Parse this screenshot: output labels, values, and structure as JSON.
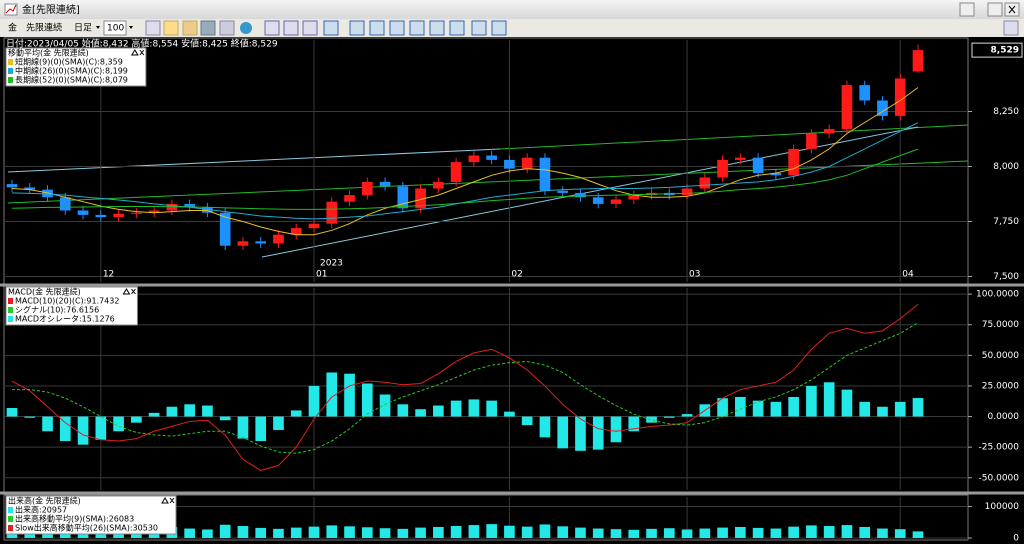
{
  "window": {
    "title": "金[先限連続]"
  },
  "toolbar": {
    "symbol": "金",
    "contract": "先限連続",
    "period": "日足",
    "count": "100"
  },
  "chart_data": [
    {
      "type": "candlestick",
      "header": "日付:2023/04/05 始値:8,432 高値:8,554 安値:8,425 終値:8,529",
      "legend_title": "移動平均(金 先限連続)",
      "categories": [
        null,
        null,
        null,
        null,
        null,
        "12",
        null,
        null,
        null,
        null,
        null,
        null,
        null,
        null,
        null,
        null,
        null,
        "01",
        null,
        null,
        null,
        null,
        null,
        null,
        null,
        null,
        null,
        null,
        "02",
        null,
        null,
        null,
        null,
        null,
        null,
        null,
        null,
        null,
        "03",
        null,
        null,
        null,
        null,
        null,
        null,
        null,
        null,
        null,
        null,
        null,
        "04",
        null
      ],
      "year_label": "2023",
      "open": [
        7920,
        7905,
        7895,
        7860,
        7800,
        7780,
        7770,
        7785,
        7790,
        7800,
        7830,
        7815,
        7790,
        7640,
        7660,
        7650,
        7690,
        7720,
        7740,
        7840,
        7870,
        7930,
        7910,
        7810,
        7900,
        7930,
        8020,
        8050,
        8030,
        7990,
        8040,
        7890,
        7880,
        7860,
        7830,
        7850,
        7870,
        7880,
        7870,
        7900,
        7950,
        8030,
        8040,
        7970,
        7960,
        8080,
        8150,
        8170,
        8370,
        8300,
        8230,
        8432
      ],
      "high": [
        7940,
        7925,
        7915,
        7880,
        7820,
        7800,
        7805,
        7810,
        7820,
        7850,
        7850,
        7835,
        7810,
        7680,
        7680,
        7710,
        7740,
        7760,
        7860,
        7890,
        7950,
        7950,
        7930,
        7920,
        7950,
        8040,
        8070,
        8070,
        8050,
        8060,
        8060,
        7910,
        7900,
        7880,
        7870,
        7890,
        7900,
        7900,
        7920,
        7970,
        8050,
        8060,
        8060,
        7990,
        8100,
        8170,
        8190,
        8390,
        8390,
        8320,
        8420,
        8554
      ],
      "low": [
        7885,
        7875,
        7840,
        7780,
        7760,
        7750,
        7750,
        7765,
        7770,
        7780,
        7795,
        7770,
        7620,
        7620,
        7630,
        7630,
        7670,
        7700,
        7720,
        7820,
        7850,
        7890,
        7790,
        7790,
        7880,
        7910,
        8000,
        8010,
        7970,
        7970,
        7870,
        7860,
        7840,
        7810,
        7810,
        7830,
        7850,
        7850,
        7850,
        7880,
        7930,
        8010,
        7950,
        7940,
        7940,
        8060,
        8130,
        8150,
        8280,
        8210,
        8210,
        8425
      ],
      "close": [
        7905,
        7895,
        7860,
        7800,
        7780,
        7770,
        7785,
        7790,
        7800,
        7830,
        7815,
        7790,
        7640,
        7660,
        7650,
        7690,
        7720,
        7740,
        7840,
        7870,
        7930,
        7910,
        7810,
        7900,
        7930,
        8020,
        8050,
        8030,
        7990,
        8040,
        7890,
        7880,
        7860,
        7830,
        7850,
        7870,
        7880,
        7870,
        7900,
        7950,
        8030,
        8040,
        7970,
        7960,
        8080,
        8150,
        8170,
        8370,
        8300,
        8230,
        8400,
        8529
      ],
      "up_color": "#ff1a1a",
      "down_color": "#1e90ff",
      "series": [
        {
          "name": "短期線(9)(0)(SMA)(C):8,359",
          "color": "#e8c020",
          "values": [
            7900,
            7895,
            7880,
            7860,
            7840,
            7820,
            7805,
            7795,
            7790,
            7795,
            7800,
            7800,
            7770,
            7750,
            7725,
            7705,
            7690,
            7690,
            7710,
            7740,
            7780,
            7810,
            7830,
            7850,
            7870,
            7900,
            7930,
            7960,
            7980,
            7990,
            7985,
            7970,
            7950,
            7920,
            7890,
            7870,
            7860,
            7860,
            7865,
            7880,
            7910,
            7940,
            7960,
            7970,
            7990,
            8030,
            8080,
            8150,
            8200,
            8250,
            8300,
            8359
          ]
        },
        {
          "name": "中期線(26)(0)(SMA)(C):8,199",
          "color": "#22aacc",
          "values": [
            7880,
            7878,
            7875,
            7870,
            7862,
            7855,
            7848,
            7840,
            7830,
            7822,
            7815,
            7805,
            7795,
            7785,
            7775,
            7770,
            7765,
            7762,
            7765,
            7770,
            7775,
            7785,
            7795,
            7805,
            7815,
            7830,
            7845,
            7860,
            7870,
            7880,
            7890,
            7895,
            7898,
            7900,
            7900,
            7900,
            7902,
            7905,
            7910,
            7915,
            7920,
            7925,
            7930,
            7940,
            7955,
            7975,
            8000,
            8040,
            8080,
            8120,
            8160,
            8199
          ]
        },
        {
          "name": "長期線(52)(0)(SMA)(C):8,079",
          "color": "#22bb22",
          "values": [
            7810,
            7812,
            7814,
            7815,
            7816,
            7817,
            7818,
            7818,
            7818,
            7817,
            7816,
            7815,
            7812,
            7810,
            7808,
            7806,
            7805,
            7805,
            7806,
            7808,
            7810,
            7814,
            7818,
            7822,
            7826,
            7832,
            7838,
            7845,
            7850,
            7856,
            7860,
            7863,
            7866,
            7868,
            7870,
            7872,
            7874,
            7876,
            7878,
            7882,
            7888,
            7895,
            7900,
            7906,
            7915,
            7925,
            7940,
            7960,
            7990,
            8020,
            8050,
            8079
          ]
        }
      ],
      "last_price": {
        "value": 8529,
        "label": "8,529"
      },
      "ylim": [
        7475,
        8575
      ],
      "yticks": [
        {
          "value": 7500,
          "label": "7,500"
        },
        {
          "value": 7750,
          "label": "7,750"
        },
        {
          "value": 8000,
          "label": "8,000"
        },
        {
          "value": 8250,
          "label": "8,250"
        }
      ],
      "grid": true
    },
    {
      "type": "macd",
      "legend_title": "MACD(金 先限連続)",
      "series": [
        {
          "name": "MACD(10)(20)(C):91.7432",
          "color": "#e02020",
          "style": "line",
          "values": [
            29,
            21,
            8,
            -5,
            -15,
            -19,
            -20,
            -18,
            -12,
            -8,
            -4,
            -3,
            -15,
            -35,
            -44,
            -40,
            -25,
            -2,
            16,
            25,
            29,
            28,
            26,
            27,
            35,
            45,
            52,
            55,
            48,
            38,
            25,
            10,
            -2,
            -10,
            -12,
            -10,
            -8,
            -7,
            -5,
            5,
            15,
            22,
            25,
            28,
            38,
            55,
            68,
            72,
            68,
            70,
            80,
            91.7432
          ]
        },
        {
          "name": "シグナル(10):76.6156",
          "color": "#22cc22",
          "style": "dashed",
          "values": [
            22,
            22,
            20,
            15,
            8,
            0,
            -8,
            -13,
            -15,
            -16,
            -14,
            -12,
            -12,
            -17,
            -24,
            -29,
            -30,
            -27,
            -20,
            -10,
            2,
            10,
            16,
            21,
            26,
            32,
            38,
            42,
            44,
            45,
            42,
            36,
            26,
            17,
            9,
            2,
            -3,
            -6,
            -7,
            -5,
            0,
            6,
            12,
            16,
            22,
            30,
            40,
            50,
            56,
            62,
            68,
            76.6156
          ]
        },
        {
          "name": "MACDオシレータ:15.1276",
          "color": "#22e8e8",
          "style": "histogram",
          "values": [
            7,
            -1,
            -12,
            -20,
            -23,
            -19,
            -12,
            -5,
            3,
            8,
            10,
            9,
            -3,
            -18,
            -20,
            -11,
            5,
            25,
            36,
            35,
            27,
            18,
            10,
            6,
            9,
            13,
            14,
            13,
            4,
            -7,
            -17,
            -26,
            -28,
            -27,
            -21,
            -12,
            -5,
            -1,
            2,
            10,
            15,
            16,
            13,
            12,
            16,
            25,
            28,
            22,
            12,
            8,
            12,
            15.1276
          ]
        }
      ],
      "ylim": [
        -60,
        105
      ],
      "yticks": [
        {
          "value": -50,
          "label": "-50.0000"
        },
        {
          "value": -25,
          "label": "-25.0000"
        },
        {
          "value": 0,
          "label": "0.0000"
        },
        {
          "value": 25,
          "label": "25.0000"
        },
        {
          "value": 50,
          "label": "50.0000"
        },
        {
          "value": 75,
          "label": "75.0000"
        },
        {
          "value": 100,
          "label": "100.0000"
        }
      ],
      "grid": true
    },
    {
      "type": "bar",
      "legend_title": "出来高(金 先限連続)",
      "series": [
        {
          "name": "出来高:20957",
          "color": "#22e8e8",
          "values": [
            28000,
            31000,
            25000,
            30000,
            27000,
            33000,
            29000,
            26000,
            31000,
            35000,
            30000,
            27000,
            42000,
            38000,
            32000,
            29000,
            33000,
            36000,
            40000,
            37000,
            34000,
            31000,
            29000,
            33000,
            35000,
            38000,
            41000,
            44000,
            39000,
            36000,
            43000,
            37000,
            33000,
            30000,
            28000,
            26000,
            29000,
            31000,
            27000,
            30000,
            33000,
            35000,
            32000,
            30000,
            36000,
            40000,
            38000,
            41000,
            35000,
            30000,
            28000,
            20957
          ]
        }
      ],
      "indicators": [
        {
          "name": "出来高移動平均(9)(SMA):26083",
          "color": "#22cc22"
        },
        {
          "name": "Slow出来高移動平均(26)(SMA):30530",
          "color": "#e02020"
        }
      ],
      "ylim": [
        0,
        130000
      ],
      "yticks": [
        0,
        100000
      ],
      "grid": true
    }
  ]
}
